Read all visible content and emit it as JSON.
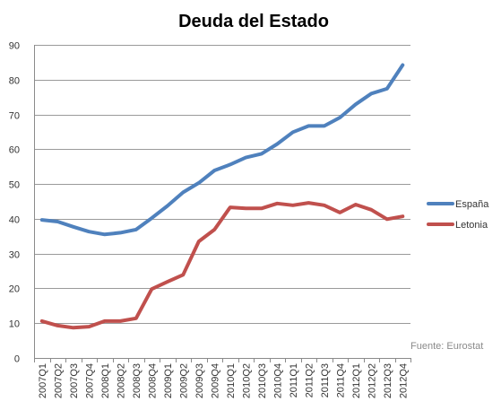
{
  "chart_data": {
    "type": "line",
    "title": "Deuda del Estado",
    "xlabel": "",
    "ylabel": "",
    "ylim": [
      0,
      90
    ],
    "yticks": [
      0,
      10,
      20,
      30,
      40,
      50,
      60,
      70,
      80,
      90
    ],
    "grid": true,
    "legend_position": "right",
    "categories": [
      "2007Q1",
      "2007Q2",
      "2007Q3",
      "2007Q4",
      "2008Q1",
      "2008Q2",
      "2008Q3",
      "2008Q4",
      "2009Q1",
      "2009Q2",
      "2009Q3",
      "2009Q4",
      "2010Q1",
      "2010Q2",
      "2010Q3",
      "2010Q4",
      "2011Q1",
      "2011Q2",
      "2011Q3",
      "2011Q4",
      "2012Q1",
      "2012Q2",
      "2012Q3",
      "2012Q4"
    ],
    "series": [
      {
        "name": "España",
        "color": "#4F81BD",
        "values": [
          39.7,
          39.2,
          37.7,
          36.3,
          35.5,
          36.0,
          36.9,
          40.2,
          43.7,
          47.6,
          50.3,
          53.9,
          55.6,
          57.6,
          58.7,
          61.5,
          64.9,
          66.7,
          66.7,
          69.1,
          72.9,
          76.0,
          77.4,
          84.2
        ]
      },
      {
        "name": "Letonia",
        "color": "#C0504D",
        "values": [
          10.6,
          9.3,
          8.7,
          9.0,
          10.6,
          10.6,
          11.4,
          19.8,
          21.9,
          23.9,
          33.5,
          36.9,
          43.3,
          43.0,
          43.0,
          44.4,
          43.9,
          44.6,
          43.9,
          41.8,
          44.1,
          42.6,
          39.9,
          40.7
        ]
      }
    ],
    "source_note": "Fuente: Eurostat"
  }
}
